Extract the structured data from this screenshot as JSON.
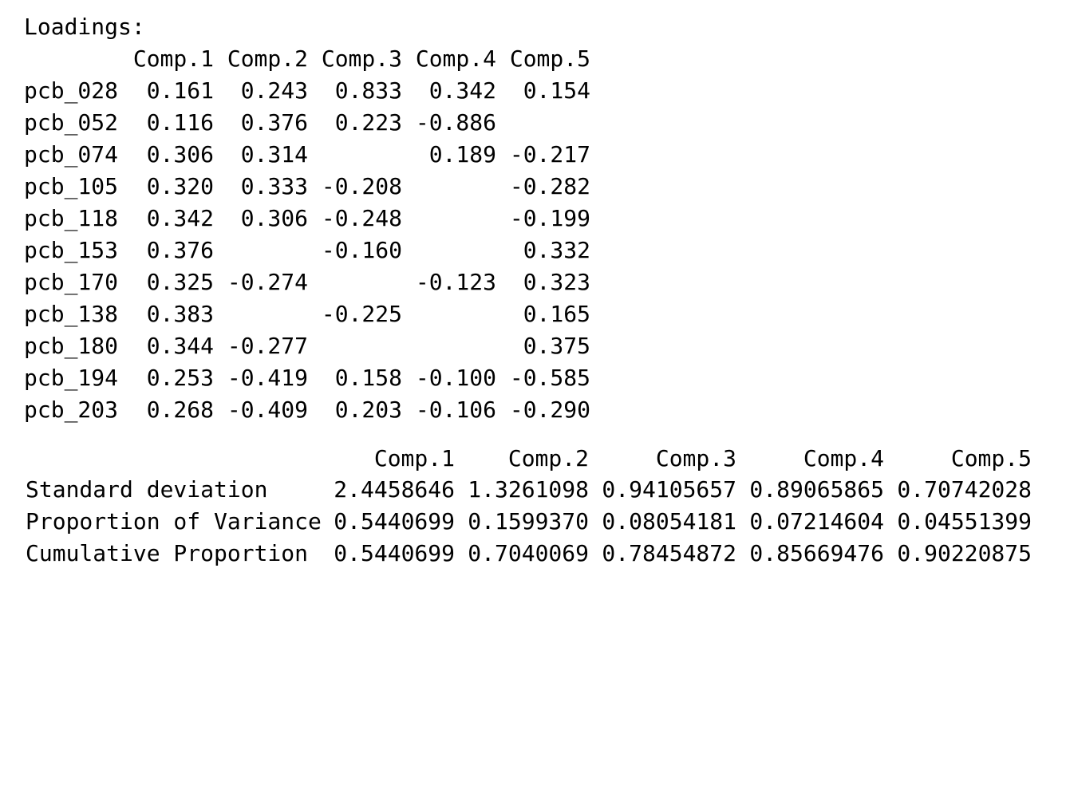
{
  "loadings": {
    "title": "Loadings:",
    "columns": [
      "Comp.1",
      "Comp.2",
      "Comp.3",
      "Comp.4",
      "Comp.5"
    ],
    "rows": [
      {
        "label": "pcb_028",
        "values": [
          "0.161",
          "0.243",
          "0.833",
          "0.342",
          "0.154"
        ]
      },
      {
        "label": "pcb_052",
        "values": [
          "0.116",
          "0.376",
          "0.223",
          "-0.886",
          ""
        ]
      },
      {
        "label": "pcb_074",
        "values": [
          "0.306",
          "0.314",
          "",
          "0.189",
          "-0.217"
        ]
      },
      {
        "label": "pcb_105",
        "values": [
          "0.320",
          "0.333",
          "-0.208",
          "",
          "-0.282"
        ]
      },
      {
        "label": "pcb_118",
        "values": [
          "0.342",
          "0.306",
          "-0.248",
          "",
          "-0.199"
        ]
      },
      {
        "label": "pcb_153",
        "values": [
          "0.376",
          "",
          "-0.160",
          "",
          "0.332"
        ]
      },
      {
        "label": "pcb_170",
        "values": [
          "0.325",
          "-0.274",
          "",
          "-0.123",
          "0.323"
        ]
      },
      {
        "label": "pcb_138",
        "values": [
          "0.383",
          "",
          "-0.225",
          "",
          "0.165"
        ]
      },
      {
        "label": "pcb_180",
        "values": [
          "0.344",
          "-0.277",
          "",
          "",
          "0.375"
        ]
      },
      {
        "label": "pcb_194",
        "values": [
          "0.253",
          "-0.419",
          "0.158",
          "-0.100",
          "-0.585"
        ]
      },
      {
        "label": "pcb_203",
        "values": [
          "0.268",
          "-0.409",
          "0.203",
          "-0.106",
          "-0.290"
        ]
      }
    ]
  },
  "variance": {
    "columns": [
      "Comp.1",
      "Comp.2",
      "Comp.3",
      "Comp.4",
      "Comp.5"
    ],
    "rows": [
      {
        "label": "Standard deviation",
        "values": [
          "2.4458646",
          "1.3261098",
          "0.94105657",
          "0.89065865",
          "0.70742028"
        ]
      },
      {
        "label": "Proportion of Variance",
        "values": [
          "0.5440699",
          "0.1599370",
          "0.08054181",
          "0.07214604",
          "0.04551399"
        ]
      },
      {
        "label": "Cumulative Proportion",
        "values": [
          "0.5440699",
          "0.7040069",
          "0.78454872",
          "0.85669476",
          "0.90220875"
        ]
      }
    ]
  }
}
